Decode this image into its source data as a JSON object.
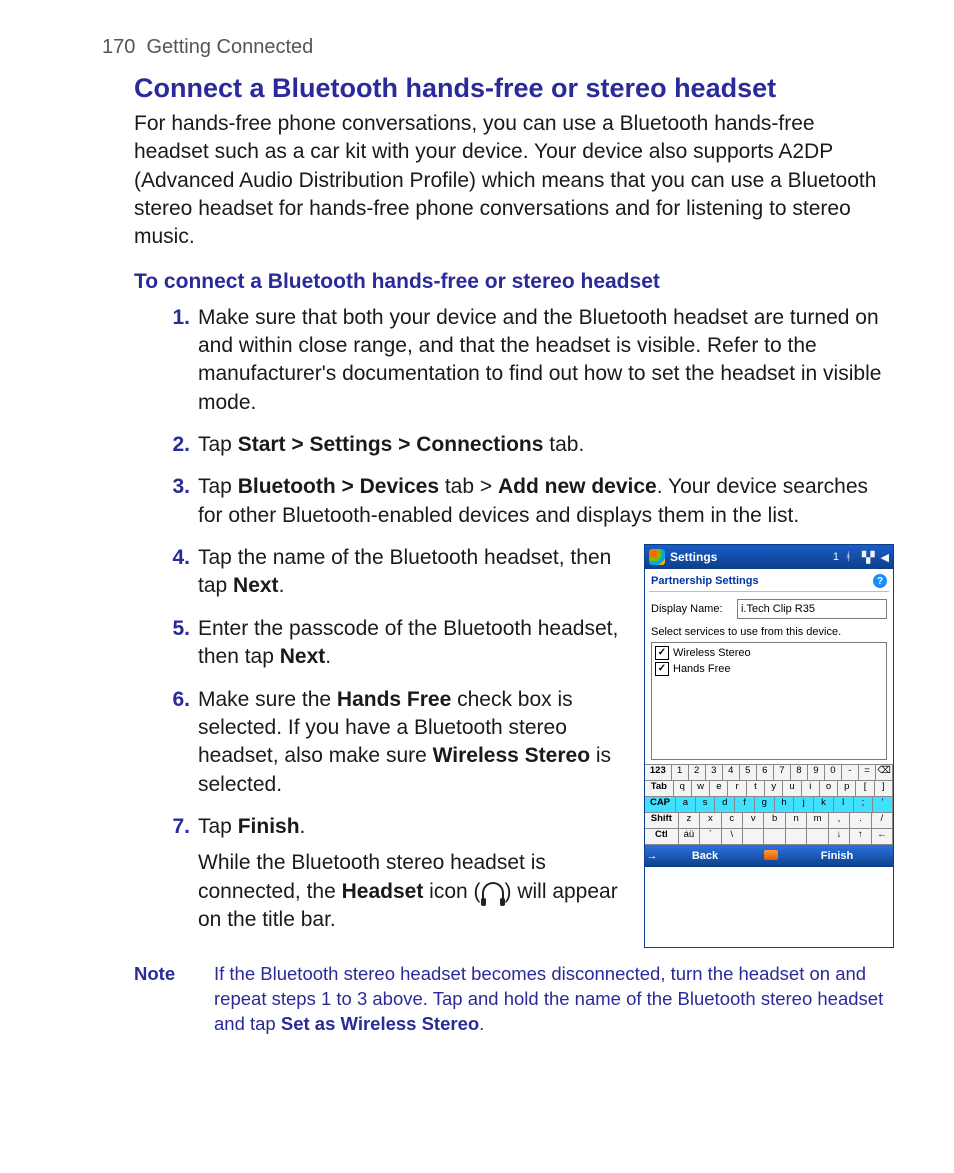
{
  "header": {
    "page_num": "170",
    "chapter": "Getting Connected"
  },
  "section_title": "Connect a Bluetooth hands-free or stereo headset",
  "intro": "For hands-free phone conversations, you can use a Bluetooth hands-free headset such as a car kit with your device. Your device also supports A2DP (Advanced Audio Distribution Profile) which means that you can use a Bluetooth stereo headset for hands-free phone conversations and for listening to stereo music.",
  "sub_title": "To connect a Bluetooth hands-free or stereo headset",
  "steps": {
    "s1": {
      "num": "1.",
      "text": "Make sure that both your device and the Bluetooth headset are turned on and within close range, and that the headset is visible. Refer to the manufacturer's documentation to find out how to set the headset in visible mode."
    },
    "s2": {
      "num": "2.",
      "pre": "Tap ",
      "bold": "Start > Settings > Connections",
      "post": " tab."
    },
    "s3": {
      "num": "3.",
      "pre": "Tap ",
      "b1": "Bluetooth > Devices",
      "mid1": " tab > ",
      "b2": "Add new device",
      "post": ". Your device searches for other Bluetooth-enabled devices and displays them in the list."
    },
    "s4": {
      "num": "4.",
      "pre": "Tap the name of the Bluetooth headset, then tap ",
      "bold": "Next",
      "post": "."
    },
    "s5": {
      "num": "5.",
      "pre": "Enter the passcode of the Bluetooth headset, then tap ",
      "bold": "Next",
      "post": "."
    },
    "s6": {
      "num": "6.",
      "pre": "Make sure the ",
      "b1": "Hands Free",
      "mid1": " check box is selected. If you have a Bluetooth stereo headset, also make sure ",
      "b2": "Wireless Stereo",
      "post": " is selected."
    },
    "s7": {
      "num": "7.",
      "pre": "Tap ",
      "bold": "Finish",
      "post": ".",
      "extra_pre": "While the Bluetooth stereo headset is connected, the ",
      "extra_b": "Headset",
      "extra_mid": " icon (",
      "extra_post": ") will appear on the title bar."
    }
  },
  "note": {
    "label": "Note",
    "pre": "If the Bluetooth stereo headset becomes disconnected, turn the headset on and repeat steps 1 to 3 above. Tap and hold the name of the Bluetooth stereo headset and tap ",
    "bold": "Set as Wireless Stereo",
    "post": "."
  },
  "screenshot": {
    "title": "Settings",
    "tray_1": "1",
    "subheader": "Partnership Settings",
    "display_name_label": "Display Name:",
    "display_name_value": "i.Tech Clip R35",
    "hint": "Select services to use from this device.",
    "service_1": "Wireless Stereo",
    "service_2": "Hands Free",
    "kbd_row1": [
      "123",
      "1",
      "2",
      "3",
      "4",
      "5",
      "6",
      "7",
      "8",
      "9",
      "0",
      "-",
      "=",
      "⌫"
    ],
    "kbd_row2": [
      "Tab",
      "q",
      "w",
      "e",
      "r",
      "t",
      "y",
      "u",
      "i",
      "o",
      "p",
      "[",
      "]"
    ],
    "kbd_row3": [
      "CAP",
      "a",
      "s",
      "d",
      "f",
      "g",
      "h",
      "j",
      "k",
      "l",
      ";",
      "'"
    ],
    "kbd_row4": [
      "Shift",
      "z",
      "x",
      "c",
      "v",
      "b",
      "n",
      "m",
      ",",
      ".",
      "/"
    ],
    "kbd_row5": [
      "Ctl",
      "áü",
      "`",
      "\\",
      " ",
      " ",
      " ",
      " ",
      "↓",
      "↑",
      "←"
    ],
    "back": "Back",
    "finish": "Finish"
  },
  "colors": {
    "heading": "#2a2a9a",
    "body": "#1a1a1a",
    "header_gray": "#555555"
  }
}
